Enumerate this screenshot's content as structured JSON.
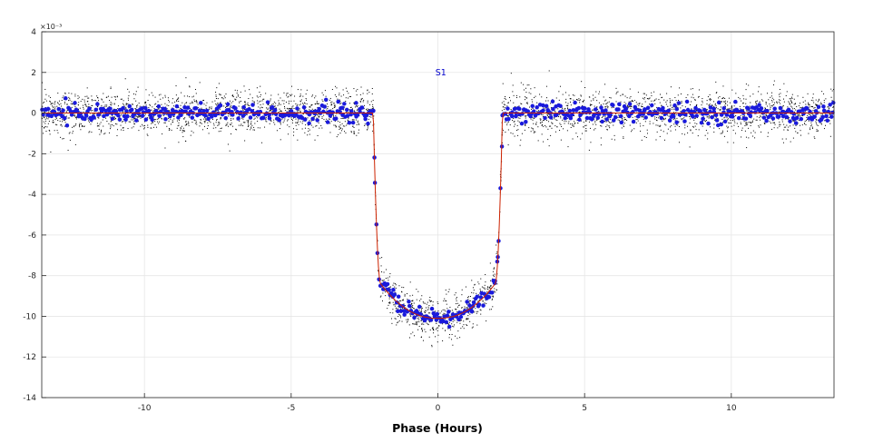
{
  "chart_data": {
    "type": "scatter",
    "title": "",
    "xlabel": "Phase (Hours)",
    "ylabel": "",
    "y_scale_label": "×10⁻³",
    "xlim": [
      -13.5,
      13.5
    ],
    "ylim": [
      -14,
      4
    ],
    "x_ticks": [
      "-10",
      "-5",
      "0",
      "5",
      "10"
    ],
    "x_tick_values": [
      -10,
      -5,
      0,
      5,
      10
    ],
    "y_ticks": [
      "4",
      "2",
      "0",
      "-2",
      "-4",
      "-6",
      "-8",
      "-10",
      "-12",
      "-14"
    ],
    "y_tick_values": [
      4,
      2,
      0,
      -2,
      -4,
      -6,
      -8,
      -10,
      -12,
      -14
    ],
    "grid": true,
    "annotation": {
      "text": "S1",
      "x": 0.1,
      "y": 2.0,
      "color": "#0000cc"
    },
    "model": {
      "description_of_shape": "transit light curve",
      "depth": -10.1,
      "limb_darkening_bottom": -8.4,
      "ingress_start": 2.2,
      "ingress_end": 1.95,
      "baseline": 0,
      "color": "#cc2200"
    },
    "series": [
      {
        "kind": "raw",
        "color": "#000000",
        "marker_size": 1,
        "count": 3800,
        "scatter_sigma": 0.55
      },
      {
        "kind": "binned",
        "color": "#1a1adb",
        "marker_size": 4.5,
        "count": 640,
        "scatter_sigma": 0.22
      }
    ]
  }
}
